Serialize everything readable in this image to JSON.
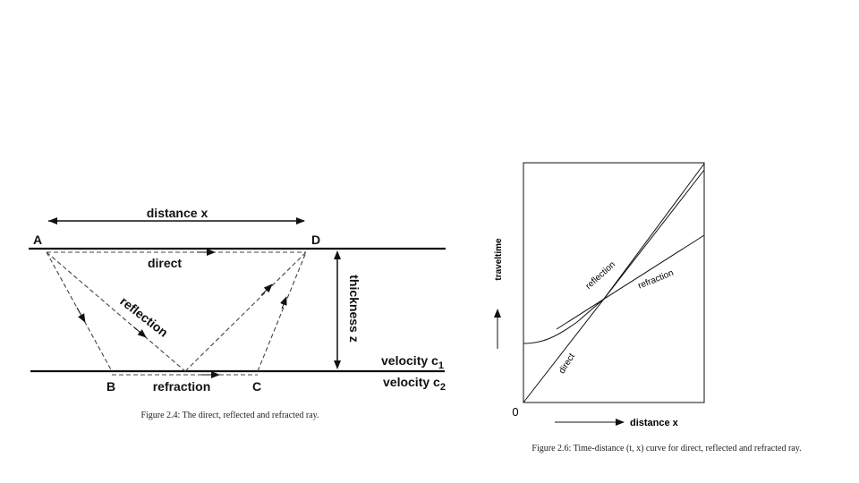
{
  "figure_left": {
    "distance_label": "distance x",
    "point_a": "A",
    "point_d": "D",
    "point_b": "B",
    "point_c": "C",
    "direct": "direct",
    "reflection": "reflection",
    "refraction": "refraction",
    "thickness": "thickness z",
    "velocity_1": {
      "text": "velocity c",
      "subscript": "1"
    },
    "velocity_2": {
      "text": "velocity c",
      "subscript": "2"
    },
    "caption": "Figure 2.4: The direct, reflected and refracted ray."
  },
  "figure_right": {
    "y_label": "traveltime",
    "x_label": "distance x",
    "origin": "0",
    "reflection": "reflection",
    "refraction": "refraction",
    "direct": "direct",
    "caption": "Figure 2.6: Time-distance (t, x) curve for direct, reflected and refracted ray."
  }
}
